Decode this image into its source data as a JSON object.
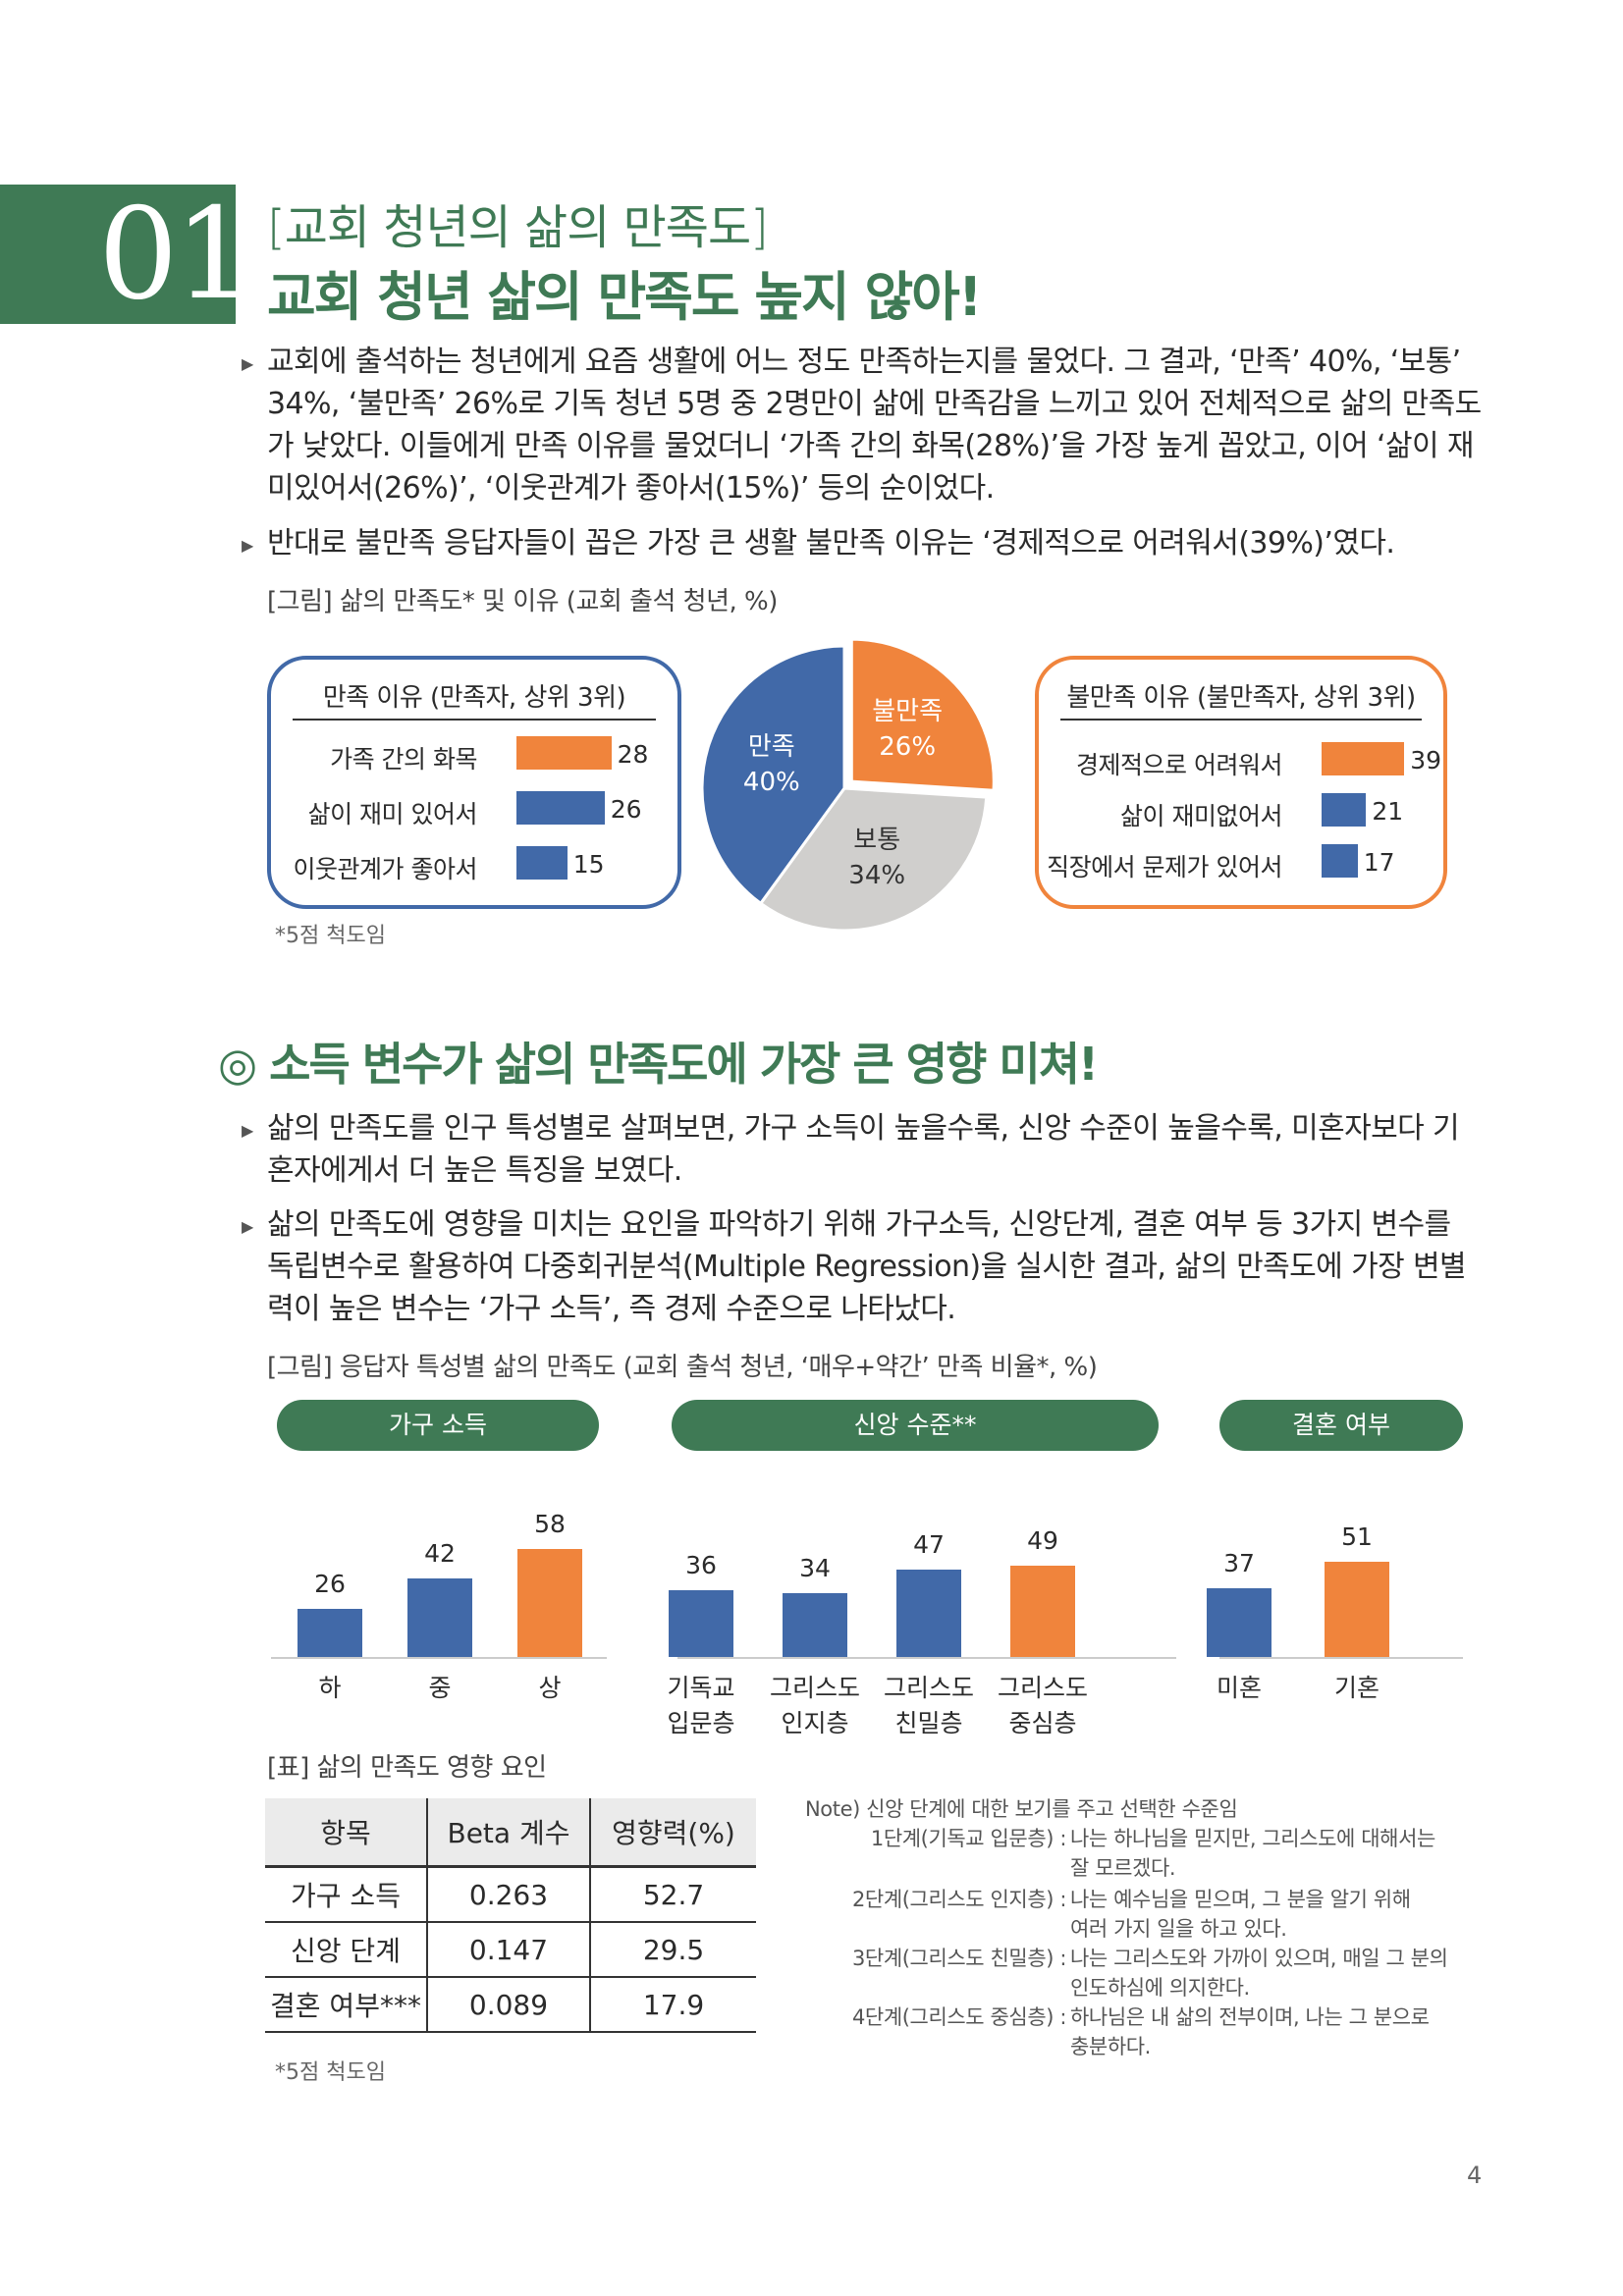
{
  "section": {
    "number": "01",
    "subtitle": "[교회 청년의 삶의 만족도]",
    "title": "교회 청년 삶의 만족도 높지 않아!"
  },
  "paragraphs1": [
    "교회에 출석하는 청년에게 요즘 생활에 어느 정도 만족하는지를 물었다. 그 결과, ‘만족’ 40%, ‘보통’ 34%, ‘불만족’ 26%로 기독 청년 5명 중 2명만이 삶에 만족감을 느끼고 있어 전체적으로 삶의 만족도가 낮았다. 이들에게 만족 이유를 물었더니 ‘가족 간의 화목(28%)’을 가장 높게 꼽았고, 이어 ‘삶이 재미있어서(26%)’, ‘이웃관계가 좋아서(15%)’ 등의 순이었다.",
    "반대로 불만족 응답자들이 꼽은 가장 큰 생활 불만족 이유는 ‘경제적으로 어려워서(39%)’였다."
  ],
  "figure1": {
    "caption": "[그림] 삶의 만족도* 및 이유 (교회 출석 청년, %)",
    "left_box": {
      "title": "만족 이유 (만족자, 상위 3위)",
      "items": [
        {
          "label": "가족 간의 화목",
          "value": 28,
          "value_text": "28",
          "color": "#f0843c"
        },
        {
          "label": "삶이 재미 있어서",
          "value": 26,
          "value_text": "26",
          "color": "#4169a8"
        },
        {
          "label": "이웃관계가 좋아서",
          "value": 15,
          "value_text": "15",
          "color": "#4169a8"
        }
      ]
    },
    "pie": {
      "slices": [
        {
          "name": "만족",
          "value": 40,
          "value_text": "40%",
          "color": "#4169a8"
        },
        {
          "name": "보통",
          "value": 34,
          "value_text": "34%",
          "color": "#d0cfcd"
        },
        {
          "name": "불만족",
          "value": 26,
          "value_text": "26%",
          "color": "#f0843c"
        }
      ]
    },
    "right_box": {
      "title": "불만족 이유 (불만족자, 상위 3위)",
      "items": [
        {
          "label": "경제적으로 어려워서",
          "value": 39,
          "value_text": "39",
          "color": "#f0843c"
        },
        {
          "label": "삶이 재미없어서",
          "value": 21,
          "value_text": "21",
          "color": "#4169a8"
        },
        {
          "label": "직장에서 문제가 있어서",
          "value": 17,
          "value_text": "17",
          "color": "#4169a8"
        }
      ]
    },
    "footnote": "*5점 척도임"
  },
  "section2": {
    "title": "◎ 소득 변수가 삶의 만족도에 가장 큰 영향 미쳐!"
  },
  "paragraphs2": [
    "삶의 만족도를 인구 특성별로 살펴보면, 가구 소득이 높을수록, 신앙 수준이 높을수록, 미혼자보다 기혼자에게서 더 높은 특징을 보였다.",
    "삶의 만족도에 영향을 미치는 요인을 파악하기 위해 가구소득, 신앙단계, 결혼 여부 등 3가지 변수를 독립변수로 활용하여 다중회귀분석(Multiple Regression)을 실시한 결과, 삶의 만족도에 가장 변별력이 높은 변수는 ‘가구 소득’, 즉 경제 수준으로 나타났다."
  ],
  "figure2": {
    "caption": "[그림] 응답자 특성별 삶의 만족도 (교회 출석 청년, ‘매우+약간’ 만족 비율*, %)",
    "groups": [
      {
        "title": "가구 소득",
        "bars": [
          {
            "cat": [
              "하"
            ],
            "value": 26,
            "color": "#4169a8"
          },
          {
            "cat": [
              "중"
            ],
            "value": 42,
            "color": "#4169a8"
          },
          {
            "cat": [
              "상"
            ],
            "value": 58,
            "color": "#f0843c"
          }
        ]
      },
      {
        "title": "신앙 수준**",
        "bars": [
          {
            "cat": [
              "기독교",
              "입문층"
            ],
            "value": 36,
            "color": "#4169a8"
          },
          {
            "cat": [
              "그리스도",
              "인지층"
            ],
            "value": 34,
            "color": "#4169a8"
          },
          {
            "cat": [
              "그리스도",
              "친밀층"
            ],
            "value": 47,
            "color": "#4169a8"
          },
          {
            "cat": [
              "그리스도",
              "중심층"
            ],
            "value": 49,
            "color": "#f0843c"
          }
        ]
      },
      {
        "title": "결혼 여부",
        "bars": [
          {
            "cat": [
              "미혼"
            ],
            "value": 37,
            "color": "#4169a8"
          },
          {
            "cat": [
              "기혼"
            ],
            "value": 51,
            "color": "#f0843c"
          }
        ]
      }
    ]
  },
  "table": {
    "caption": "[표] 삶의 만족도 영향 요인",
    "headers": [
      "항목",
      "Beta 계수",
      "영향력(%)"
    ],
    "rows": [
      [
        "가구 소득",
        "0.263",
        "52.7"
      ],
      [
        "신앙 단계",
        "0.147",
        "29.5"
      ],
      [
        "결혼 여부***",
        "0.089",
        "17.9"
      ]
    ],
    "footnote": "*5점 척도임"
  },
  "note": {
    "heading": "Note) 신앙 단계에 대한 보기를 주고 선택한 수준임",
    "items": [
      {
        "stage": "1단계(기독교 입문층) :",
        "lines": [
          "나는 하나님을 믿지만, 그리스도에 대해서는",
          "잘 모르겠다."
        ]
      },
      {
        "stage": "2단계(그리스도 인지층) :",
        "lines": [
          "나는 예수님을 믿으며, 그 분을 알기 위해",
          "여러 가지 일을 하고 있다."
        ]
      },
      {
        "stage": "3단계(그리스도 친밀층) :",
        "lines": [
          "나는 그리스도와 가까이 있으며, 매일 그 분의",
          "인도하심에 의지한다."
        ]
      },
      {
        "stage": "4단계(그리스도 중심층) :",
        "lines": [
          "하나님은 내 삶의 전부이며, 나는 그 분으로",
          "충분하다."
        ]
      }
    ]
  },
  "page_number": "4"
}
